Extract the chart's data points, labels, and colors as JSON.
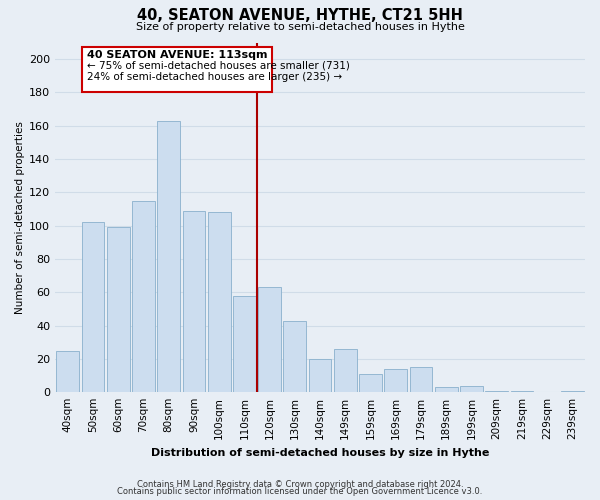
{
  "title": "40, SEATON AVENUE, HYTHE, CT21 5HH",
  "subtitle": "Size of property relative to semi-detached houses in Hythe",
  "xlabel": "Distribution of semi-detached houses by size in Hythe",
  "ylabel": "Number of semi-detached properties",
  "categories": [
    "40sqm",
    "50sqm",
    "60sqm",
    "70sqm",
    "80sqm",
    "90sqm",
    "100sqm",
    "110sqm",
    "120sqm",
    "130sqm",
    "140sqm",
    "149sqm",
    "159sqm",
    "169sqm",
    "179sqm",
    "189sqm",
    "199sqm",
    "209sqm",
    "219sqm",
    "229sqm",
    "239sqm"
  ],
  "values": [
    25,
    102,
    99,
    115,
    163,
    109,
    108,
    58,
    63,
    43,
    20,
    26,
    11,
    14,
    15,
    3,
    4,
    1,
    1,
    0,
    1
  ],
  "bar_color": "#ccddef",
  "bar_edge_color": "#8ab0cc",
  "property_line_color": "#aa0000",
  "annotation_title": "40 SEATON AVENUE: 113sqm",
  "annotation_line1": "← 75% of semi-detached houses are smaller (731)",
  "annotation_line2": "24% of semi-detached houses are larger (235) →",
  "annotation_box_color": "#ffffff",
  "annotation_box_edge": "#cc0000",
  "ylim_max": 210,
  "yticks": [
    0,
    20,
    40,
    60,
    80,
    100,
    120,
    140,
    160,
    180,
    200
  ],
  "footer_line1": "Contains HM Land Registry data © Crown copyright and database right 2024.",
  "footer_line2": "Contains public sector information licensed under the Open Government Licence v3.0.",
  "background_color": "#e8eef5",
  "grid_color": "#d0dce8"
}
